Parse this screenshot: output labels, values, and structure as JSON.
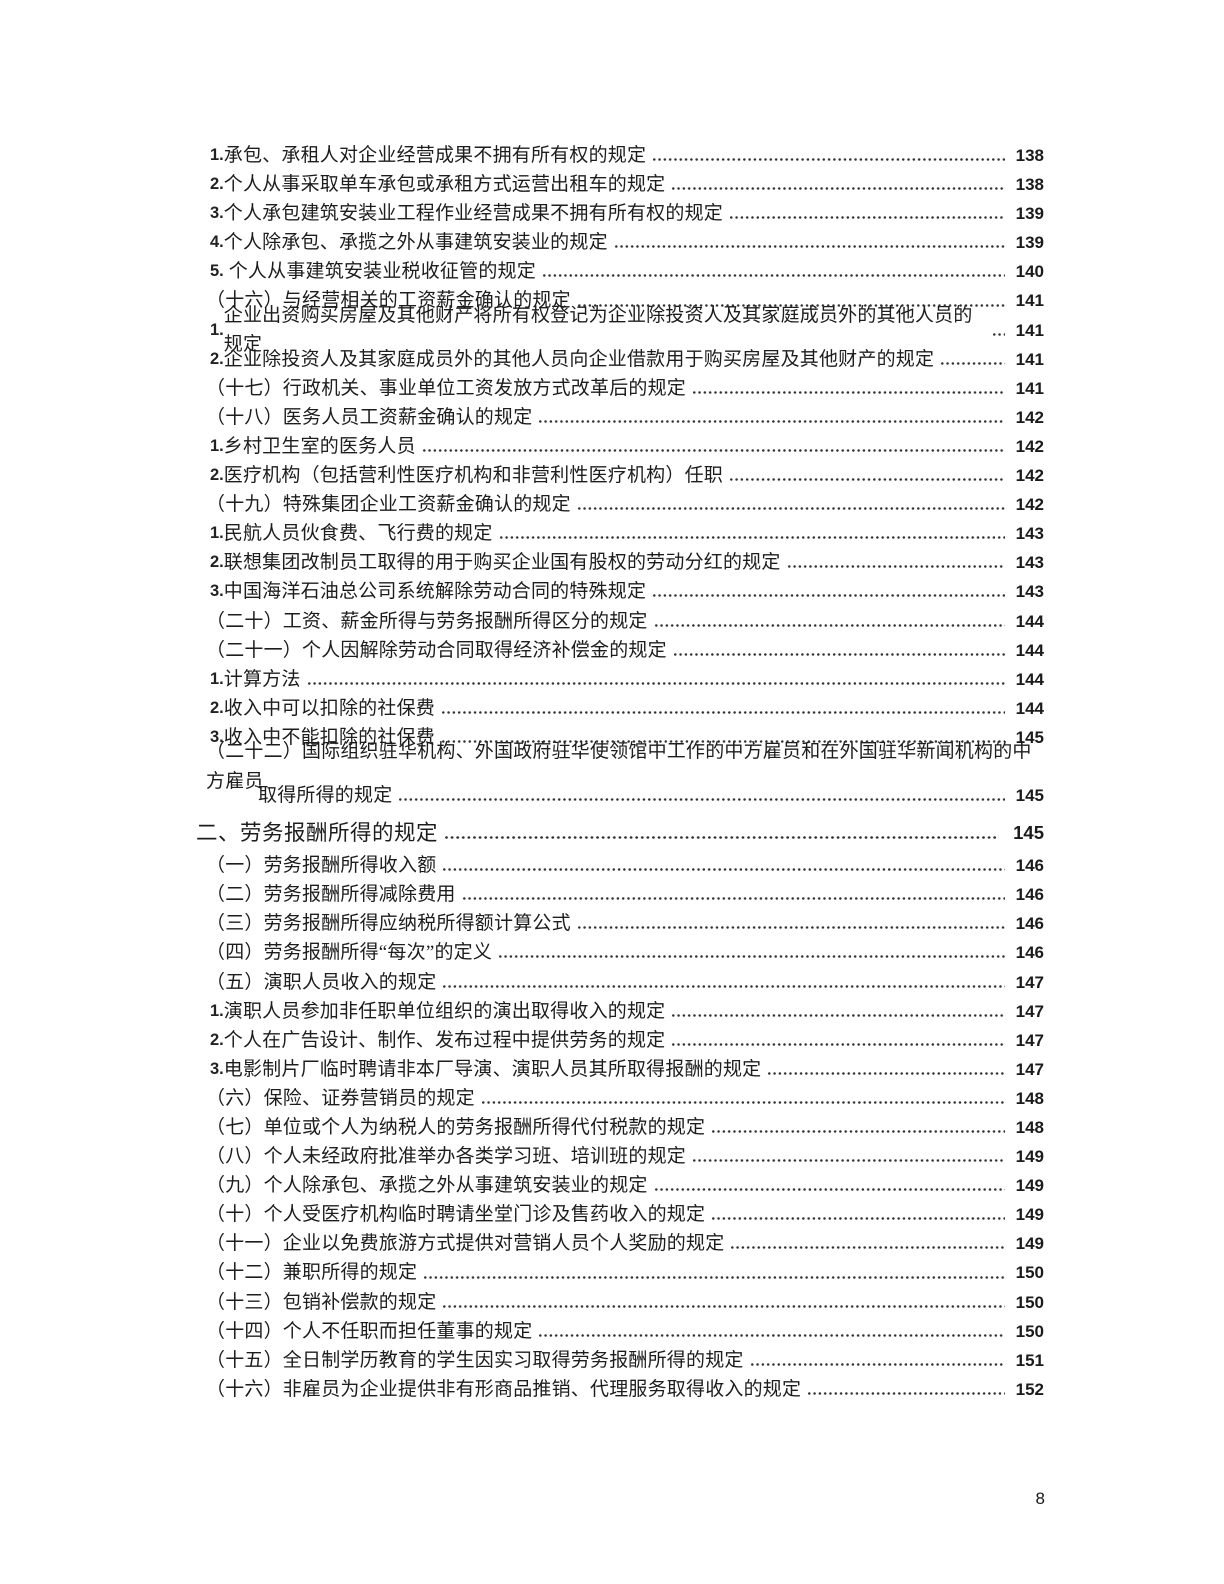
{
  "document": {
    "footer_page_number": "8",
    "toc_entries": [
      {
        "kind": "num",
        "num": "1.",
        "text": "承包、承租人对企业经营成果不拥有所有权的规定",
        "page": "138"
      },
      {
        "kind": "num",
        "num": "2.",
        "text": "个人从事采取单车承包或承租方式运营出租车的规定",
        "page": "138"
      },
      {
        "kind": "num",
        "num": "3.",
        "text": "个人承包建筑安装业工程作业经营成果不拥有所有权的规定",
        "page": "139"
      },
      {
        "kind": "num",
        "num": "4.",
        "text": "个人除承包、承揽之外从事建筑安装业的规定",
        "page": "139"
      },
      {
        "kind": "num",
        "num": "5.",
        "text": " 个人从事建筑安装业税收征管的规定",
        "page": "140"
      },
      {
        "kind": "paren",
        "text": "（十六）与经营相关的工资薪金确认的规定",
        "page": "141"
      },
      {
        "kind": "num",
        "num": "1.",
        "text": "企业出资购买房屋及其他财产将所有权登记为企业除投资人及其家庭成员外的其他人员的规定",
        "page": "141"
      },
      {
        "kind": "num",
        "num": "2.",
        "text": "企业除投资人及其家庭成员外的其他人员向企业借款用于购买房屋及其他财产的规定",
        "page": "141"
      },
      {
        "kind": "paren",
        "text": "（十七）行政机关、事业单位工资发放方式改革后的规定",
        "page": "141"
      },
      {
        "kind": "paren",
        "text": "（十八）医务人员工资薪金确认的规定",
        "page": "142"
      },
      {
        "kind": "num",
        "num": "1.",
        "text": "乡村卫生室的医务人员",
        "page": "142"
      },
      {
        "kind": "num",
        "num": "2.",
        "text": "医疗机构（包括营利性医疗机构和非营利性医疗机构）任职",
        "page": "142"
      },
      {
        "kind": "paren",
        "text": "（十九）特殊集团企业工资薪金确认的规定",
        "page": "142"
      },
      {
        "kind": "num",
        "num": "1.",
        "text": "民航人员伙食费、飞行费的规定",
        "page": "143"
      },
      {
        "kind": "num",
        "num": "2.",
        "text": "联想集团改制员工取得的用于购买企业国有股权的劳动分红的规定",
        "page": "143"
      },
      {
        "kind": "num",
        "num": "3.",
        "text": "中国海洋石油总公司系统解除劳动合同的特殊规定",
        "page": "143"
      },
      {
        "kind": "paren",
        "text": "（二十）工资、薪金所得与劳务报酬所得区分的规定",
        "page": "144"
      },
      {
        "kind": "paren",
        "text": "（二十一）个人因解除劳动合同取得经济补偿金的规定",
        "page": "144"
      },
      {
        "kind": "num",
        "num": "1.",
        "text": "计算方法",
        "page": "144"
      },
      {
        "kind": "num",
        "num": "2.",
        "text": "收入中可以扣除的社保费",
        "page": "144"
      },
      {
        "kind": "num",
        "num": "3.",
        "text": "收入中不能扣除的社保费",
        "page": "145"
      },
      {
        "kind": "paren",
        "text": "（二十二）国际组织驻华机构、外国政府驻华使领馆中工作的中方雇员和在外国驻华新闻机构的中方雇员",
        "page": null
      },
      {
        "kind": "cont",
        "text": "取得所得的规定",
        "page": "145"
      },
      {
        "kind": "section",
        "text": "二、劳务报酬所得的规定",
        "page": "145"
      },
      {
        "kind": "paren",
        "text": "（一）劳务报酬所得收入额",
        "page": "146"
      },
      {
        "kind": "paren",
        "text": "（二）劳务报酬所得减除费用",
        "page": "146"
      },
      {
        "kind": "paren",
        "text": "（三）劳务报酬所得应纳税所得额计算公式",
        "page": "146"
      },
      {
        "kind": "paren",
        "text": "（四）劳务报酬所得“每次”的定义",
        "page": "146"
      },
      {
        "kind": "paren",
        "text": "（五）演职人员收入的规定",
        "page": "147"
      },
      {
        "kind": "num",
        "num": "1.",
        "text": "演职人员参加非任职单位组织的演出取得收入的规定",
        "page": "147"
      },
      {
        "kind": "num",
        "num": "2.",
        "text": "个人在广告设计、制作、发布过程中提供劳务的规定",
        "page": "147"
      },
      {
        "kind": "num",
        "num": "3.",
        "text": "电影制片厂临时聘请非本厂导演、演职人员其所取得报酬的规定",
        "page": "147"
      },
      {
        "kind": "paren",
        "text": "（六）保险、证券营销员的规定",
        "page": "148"
      },
      {
        "kind": "paren",
        "text": "（七）单位或个人为纳税人的劳务报酬所得代付税款的规定",
        "page": "148"
      },
      {
        "kind": "paren",
        "text": "（八）个人未经政府批准举办各类学习班、培训班的规定",
        "page": "149"
      },
      {
        "kind": "paren",
        "text": "（九）个人除承包、承揽之外从事建筑安装业的规定",
        "page": "149"
      },
      {
        "kind": "paren",
        "text": "（十）个人受医疗机构临时聘请坐堂门诊及售药收入的规定",
        "page": "149"
      },
      {
        "kind": "paren",
        "text": "（十一）企业以免费旅游方式提供对营销人员个人奖励的规定",
        "page": "149"
      },
      {
        "kind": "paren",
        "text": "（十二）兼职所得的规定",
        "page": "150"
      },
      {
        "kind": "paren",
        "text": "（十三）包销补偿款的规定",
        "page": "150"
      },
      {
        "kind": "paren",
        "text": "（十四）个人不任职而担任董事的规定",
        "page": "150"
      },
      {
        "kind": "paren",
        "text": "（十五）全日制学历教育的学生因实习取得劳务报酬所得的规定",
        "page": "151"
      },
      {
        "kind": "paren",
        "text": "（十六）非雇员为企业提供非有形商品推销、代理服务取得收入的规定",
        "page": "152"
      }
    ]
  }
}
